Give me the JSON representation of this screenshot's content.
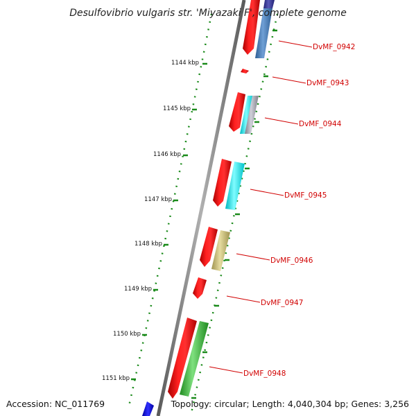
{
  "title": "Desulfovibrio vulgaris str. 'Miyazaki F', complete genome",
  "footer": {
    "accession": "Accession: NC_011769",
    "summary": "Topology: circular; Length: 4,040,304 bp; Genes: 3,256"
  },
  "ticks": [
    "1144 kbp",
    "1145 kbp",
    "1146 kbp",
    "1147 kbp",
    "1148 kbp",
    "1149 kbp",
    "1150 kbp",
    "1151 kbp"
  ],
  "gene_labels": [
    "DvMF_0942",
    "DvMF_0943",
    "DvMF_0944",
    "DvMF_0945",
    "DvMF_0946",
    "DvMF_0947",
    "DvMF_0948"
  ],
  "colors": {
    "backbone": "#7a7a7a",
    "forward_gene": "#e00000",
    "label": "#d10000",
    "dotted_track": "#1a8a1a",
    "steel_blue": "#4f7fb5",
    "navy": "#3a3a9a",
    "cyan": "#00e5ee",
    "gray": "#a9a9b5",
    "khaki": "#c8bc78",
    "green": "#3fbf3f",
    "blue": "#0000e0"
  }
}
